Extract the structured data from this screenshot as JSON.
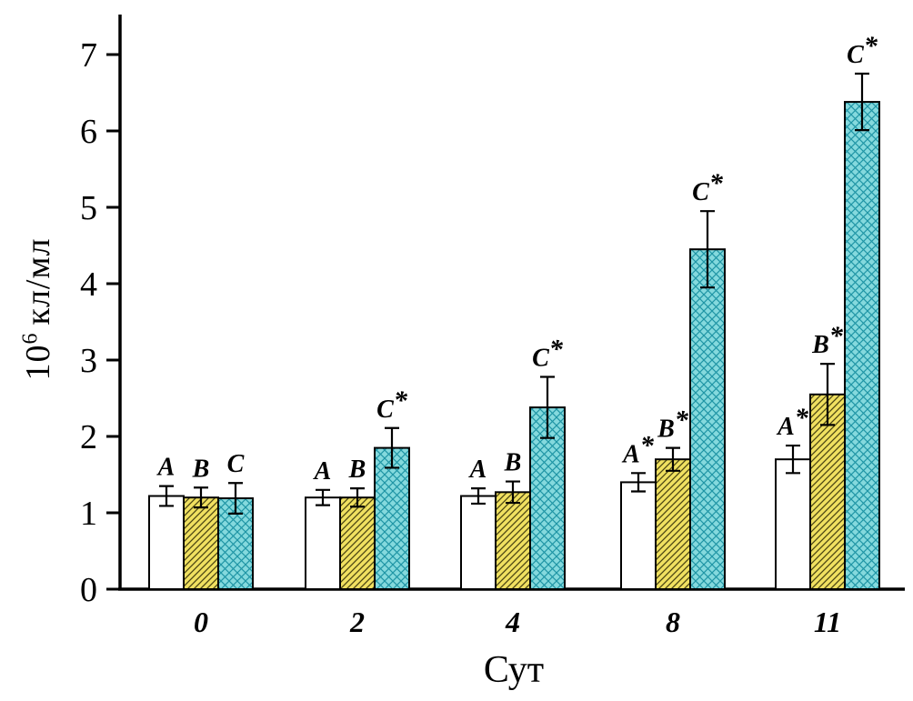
{
  "chart_data": {
    "type": "bar",
    "title": "",
    "xlabel": "Сут",
    "ylabel": "10^6 кл/мл",
    "ylabel_base": "10",
    "ylabel_exp": "6",
    "ylabel_unit": "кл/мл",
    "ylim": [
      0,
      7
    ],
    "yticks": [
      0,
      1,
      2,
      3,
      4,
      5,
      6,
      7
    ],
    "categories": [
      "0",
      "2",
      "4",
      "8",
      "11"
    ],
    "grid": false,
    "legend": "none",
    "series": [
      {
        "name": "A",
        "fill_color": "#ffffff",
        "pattern": "plain",
        "values": [
          1.22,
          1.2,
          1.22,
          1.4,
          1.7
        ],
        "errors": [
          0.13,
          0.1,
          0.1,
          0.12,
          0.18
        ],
        "point_labels": [
          "A",
          "A",
          "A",
          "A*",
          "A*"
        ]
      },
      {
        "name": "B",
        "fill_color": "#f0e060",
        "pattern": "diagonal-hatch",
        "hatch_color": "#4a4512",
        "values": [
          1.2,
          1.2,
          1.27,
          1.7,
          2.55
        ],
        "errors": [
          0.13,
          0.12,
          0.14,
          0.15,
          0.4
        ],
        "point_labels": [
          "B",
          "B",
          "B",
          "B*",
          "B*"
        ]
      },
      {
        "name": "C",
        "fill_color": "#84d9dd",
        "pattern": "cross-hatch",
        "hatch_color": "#1f95a5",
        "values": [
          1.19,
          1.85,
          2.38,
          4.45,
          6.38
        ],
        "errors": [
          0.2,
          0.26,
          0.4,
          0.5,
          0.37
        ],
        "point_labels": [
          "C",
          "C*",
          "C*",
          "C*",
          "C*"
        ]
      }
    ]
  }
}
